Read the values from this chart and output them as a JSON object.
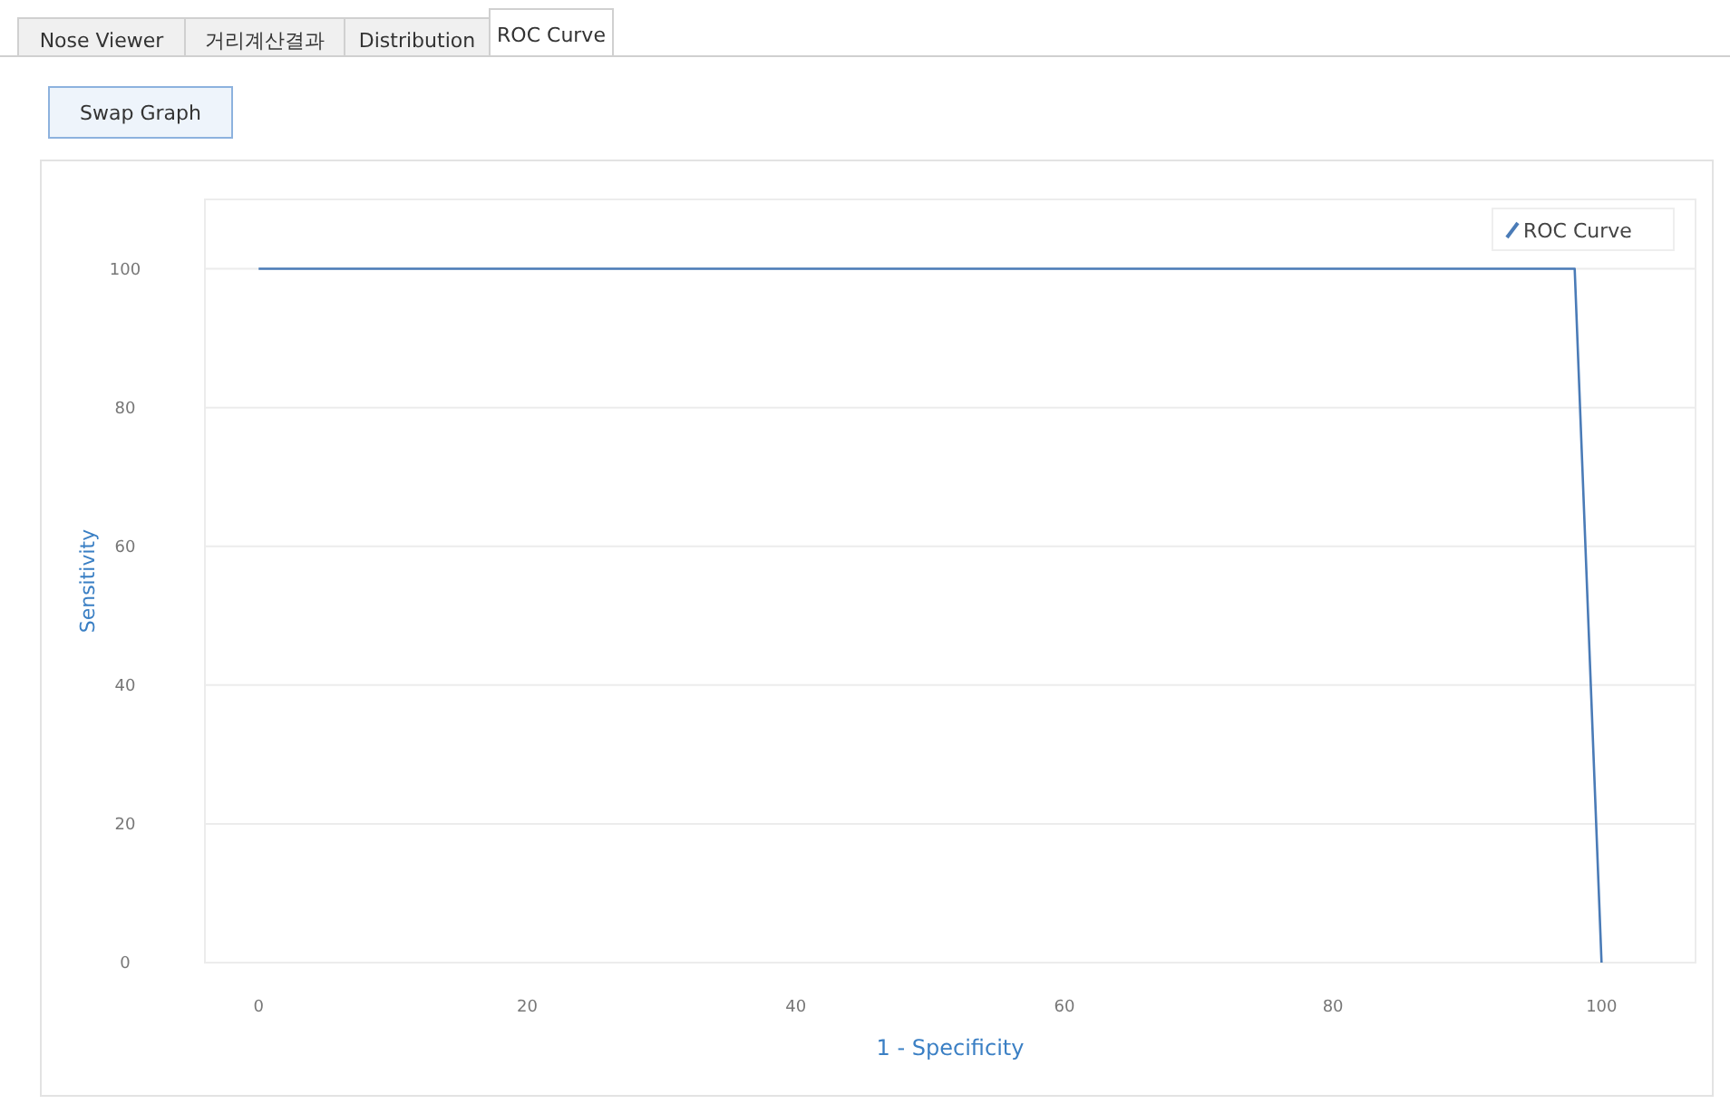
{
  "chart_data": {
    "type": "line",
    "xlabel": "1 - Specificity",
    "ylabel": "Sensitivity",
    "annotations": [
      "Nose Viewer",
      "거리계산결과",
      "Distribution",
      "ROC Curve",
      "Swap Graph"
    ],
    "x": [
      0,
      98,
      100
    ],
    "series": [
      {
        "name": "ROC Curve",
        "color": "#4a7bb7",
        "values": [
          100,
          100,
          0
        ]
      }
    ],
    "xlim": [
      -4,
      107
    ],
    "ylim": [
      0,
      110
    ],
    "xticks": [
      0,
      20,
      40,
      60,
      80,
      100
    ],
    "yticks": [
      0,
      20,
      40,
      60,
      80,
      100
    ],
    "grid": "y",
    "legend": "top right",
    "marker": "none",
    "line_style": "solid"
  }
}
